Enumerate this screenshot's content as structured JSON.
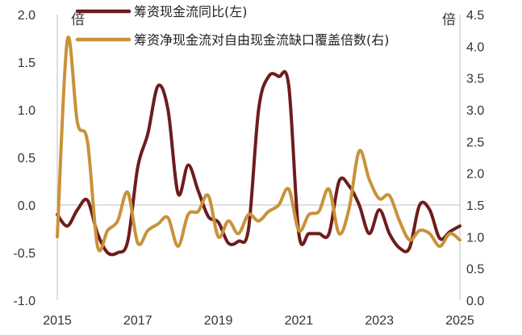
{
  "chart_data": {
    "type": "line",
    "x_ticks": [
      "2015",
      "2017",
      "2019",
      "2021",
      "2023",
      "2025"
    ],
    "left_axis": {
      "unit_label": "倍",
      "ylim": [
        -1.0,
        2.0
      ],
      "ticks": [
        "2.0",
        "1.5",
        "1.0",
        "0.5",
        "0.0",
        "-0.5",
        "-1.0"
      ]
    },
    "right_axis": {
      "unit_label": "倍",
      "ylim": [
        0.0,
        4.5
      ],
      "ticks": [
        "4.5",
        "4.0",
        "3.5",
        "3.0",
        "2.5",
        "2.0",
        "1.5",
        "1.0",
        "0.5",
        "0.0"
      ]
    },
    "zero_line": true,
    "legend_position": "top-right",
    "series": [
      {
        "name": "筹资现金流同比(左)",
        "axis": "left",
        "color": "#6e1c1c",
        "x": [
          2015.0,
          2015.25,
          2015.5,
          2015.75,
          2016.0,
          2016.25,
          2016.5,
          2016.75,
          2017.0,
          2017.25,
          2017.5,
          2017.75,
          2018.0,
          2018.25,
          2018.5,
          2018.75,
          2019.0,
          2019.25,
          2019.5,
          2019.75,
          2020.0,
          2020.25,
          2020.5,
          2020.75,
          2021.0,
          2021.25,
          2021.5,
          2021.75,
          2022.0,
          2022.25,
          2022.5,
          2022.75,
          2023.0,
          2023.25,
          2023.5,
          2023.75,
          2024.0,
          2024.25,
          2024.5,
          2024.75,
          2025.0
        ],
        "values": [
          -0.1,
          -0.22,
          -0.05,
          0.05,
          -0.3,
          -0.5,
          -0.5,
          -0.38,
          0.4,
          0.75,
          1.25,
          1.0,
          0.12,
          0.42,
          0.15,
          -0.12,
          -0.18,
          -0.4,
          -0.38,
          -0.25,
          1.0,
          1.35,
          1.35,
          1.25,
          -0.3,
          -0.3,
          -0.3,
          -0.3,
          0.25,
          0.2,
          0.0,
          -0.3,
          -0.05,
          -0.3,
          -0.45,
          -0.45,
          0.0,
          -0.05,
          -0.35,
          -0.28,
          -0.22
        ]
      },
      {
        "name": "筹资净现金流对自由现金流缺口覆盖倍数(右)",
        "axis": "right",
        "color": "#c9923a",
        "x": [
          2015.0,
          2015.25,
          2015.5,
          2015.75,
          2016.0,
          2016.25,
          2016.5,
          2016.75,
          2017.0,
          2017.25,
          2017.5,
          2017.75,
          2018.0,
          2018.25,
          2018.5,
          2018.75,
          2019.0,
          2019.25,
          2019.5,
          2019.75,
          2020.0,
          2020.25,
          2020.5,
          2020.75,
          2021.0,
          2021.25,
          2021.5,
          2021.75,
          2022.0,
          2022.25,
          2022.5,
          2022.75,
          2023.0,
          2023.25,
          2023.5,
          2023.75,
          2024.0,
          2024.25,
          2024.5,
          2024.75,
          2025.0
        ],
        "values": [
          1.0,
          4.1,
          2.8,
          2.5,
          0.85,
          1.1,
          1.25,
          1.7,
          0.9,
          1.1,
          1.2,
          1.3,
          0.85,
          1.35,
          1.4,
          1.65,
          1.0,
          1.25,
          1.05,
          1.35,
          1.25,
          1.4,
          1.5,
          1.75,
          1.1,
          1.35,
          1.4,
          1.75,
          1.05,
          1.45,
          2.35,
          1.9,
          1.6,
          1.65,
          1.25,
          0.95,
          1.1,
          1.05,
          0.85,
          1.05,
          0.95
        ]
      }
    ]
  }
}
